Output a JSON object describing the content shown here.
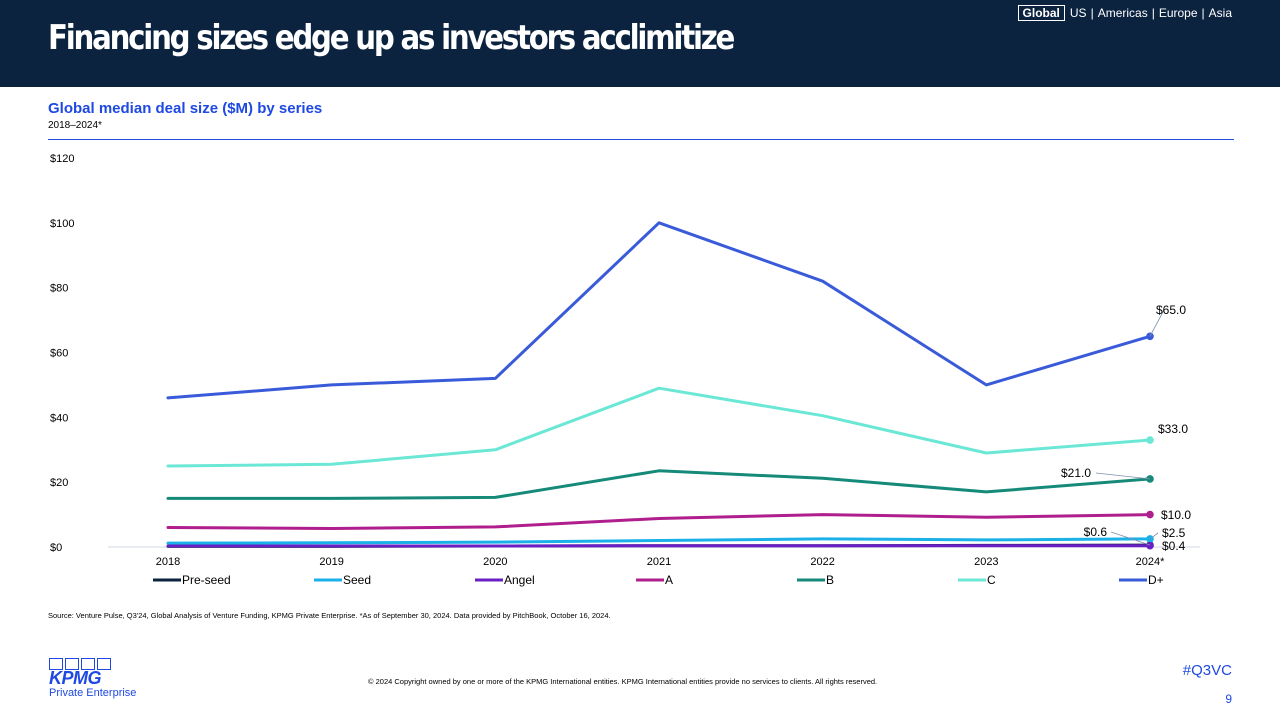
{
  "header": {
    "title": "Financing sizes edge up as investors acclimitize",
    "regions": [
      "Global",
      "US",
      "Americas",
      "Europe",
      "Asia"
    ],
    "active_region": "Global"
  },
  "colors": {
    "header_bg": "#0c2340",
    "accent": "#1e49e2",
    "series": {
      "Pre-seed": "#0c2340",
      "Seed": "#1ab0e8",
      "Angel": "#6a1fc4",
      "A": "#b01e8e",
      "B": "#158a78",
      "C": "#6be7d6",
      "D+": "#3a5bd9"
    }
  },
  "chart_data": {
    "type": "line",
    "title": "Global median deal size ($M) by series",
    "subtitle": "2018–2024*",
    "categories": [
      "2018",
      "2019",
      "2020",
      "2021",
      "2022",
      "2023",
      "2024*"
    ],
    "ylim": [
      0,
      120
    ],
    "yticks": [
      0,
      20,
      40,
      60,
      80,
      100,
      120
    ],
    "ytick_labels": [
      "$0",
      "$20",
      "$40",
      "$60",
      "$80",
      "$100",
      "$120"
    ],
    "grid": false,
    "legend_position": "bottom",
    "series": [
      {
        "name": "Pre-seed",
        "values": [
          0.2,
          0.2,
          0.3,
          0.4,
          0.4,
          0.5,
          0.6
        ],
        "end_label": "$0.6"
      },
      {
        "name": "Seed",
        "values": [
          1.2,
          1.3,
          1.5,
          2.0,
          2.5,
          2.2,
          2.5
        ],
        "end_label": "$2.5"
      },
      {
        "name": "Angel",
        "values": [
          0.3,
          0.3,
          0.3,
          0.4,
          0.4,
          0.4,
          0.4
        ],
        "end_label": "$0.4"
      },
      {
        "name": "A",
        "values": [
          6.0,
          5.7,
          6.2,
          8.8,
          10.0,
          9.2,
          10.0
        ],
        "end_label": "$10.0"
      },
      {
        "name": "B",
        "values": [
          15.0,
          15.0,
          15.3,
          23.5,
          21.2,
          17.0,
          21.0
        ],
        "end_label": "$21.0"
      },
      {
        "name": "C",
        "values": [
          25.0,
          25.5,
          30.0,
          49.0,
          40.5,
          29.0,
          33.0
        ],
        "end_label": "$33.0"
      },
      {
        "name": "D+",
        "values": [
          46.0,
          50.0,
          52.0,
          100.0,
          82.0,
          50.0,
          65.0
        ],
        "end_label": "$65.0"
      }
    ]
  },
  "footer": {
    "source": "Source: Venture Pulse, Q3'24, Global Analysis of Venture Funding, KPMG Private Enterprise. *As of September 30, 2024. Data provided by PitchBook, October 16, 2024.",
    "copyright": "© 2024 Copyright owned by one or more of the KPMG International entities. KPMG International entities provide no services to clients. All rights reserved.",
    "hashtag": "#Q3VC",
    "page": "9",
    "logo_word": "KPMG",
    "logo_sub": "Private Enterprise"
  }
}
